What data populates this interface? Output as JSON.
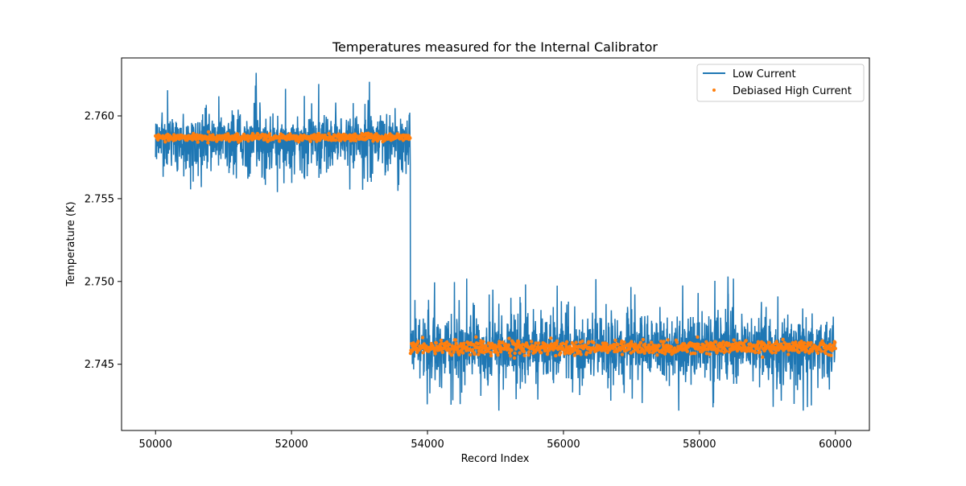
{
  "chart_data": {
    "type": "line",
    "title": "Temperatures measured for the Internal Calibrator",
    "xlabel": "Record Index",
    "ylabel": "Temperature (K)",
    "xlim": [
      49500,
      60500
    ],
    "ylim": [
      2.741,
      2.7635
    ],
    "x_ticks": [
      50000,
      52000,
      54000,
      56000,
      58000,
      60000
    ],
    "x_tick_labels": [
      "50000",
      "52000",
      "54000",
      "56000",
      "58000",
      "60000"
    ],
    "y_ticks": [
      2.745,
      2.75,
      2.755,
      2.76
    ],
    "y_tick_labels": [
      "2.745",
      "2.750",
      "2.755",
      "2.760"
    ],
    "grid": false,
    "legend_position": "top-right",
    "series": [
      {
        "name": "Low Current",
        "kind": "line",
        "color": "#1f77b4",
        "x_range": [
          50000,
          60000
        ],
        "step_at": 53750,
        "segments": [
          {
            "x_start": 50000,
            "x_end": 53750,
            "center": 2.7587,
            "typical_min": 2.7565,
            "typical_max": 2.7598,
            "min": 2.7553,
            "max": 2.7626
          },
          {
            "x_start": 53750,
            "x_end": 60000,
            "center": 2.746,
            "typical_min": 2.744,
            "typical_max": 2.7478,
            "min": 2.7422,
            "max": 2.7503
          }
        ],
        "notable_points": [
          {
            "x": 51480,
            "y": 2.7626
          },
          {
            "x": 52650,
            "y": 2.7608
          },
          {
            "x": 55050,
            "y": 2.7422
          },
          {
            "x": 57150,
            "y": 2.7479
          },
          {
            "x": 58200,
            "y": 2.7424
          },
          {
            "x": 58420,
            "y": 2.7503
          }
        ]
      },
      {
        "name": "Debiased High Current",
        "kind": "scatter",
        "color": "#ff7f0e",
        "x_range": [
          50000,
          60000
        ],
        "step_at": 53750,
        "segments": [
          {
            "x_start": 50000,
            "x_end": 53750,
            "center": 2.7587,
            "min": 2.7583,
            "max": 2.7592
          },
          {
            "x_start": 53750,
            "x_end": 60000,
            "center": 2.746,
            "min": 2.745,
            "max": 2.7467
          }
        ]
      }
    ]
  }
}
